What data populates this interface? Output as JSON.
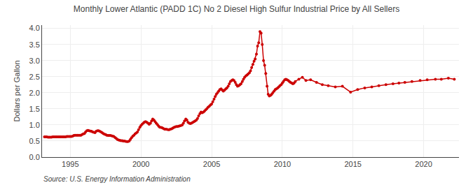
{
  "chart_data": {
    "type": "line",
    "title": "Monthly Lower Atlantic (PADD 1C) No 2 Diesel High Sulfur Industrial Price by All Sellers",
    "y_label": "Dollars per Gallon",
    "annotations": [
      "Source: U.S. Energy Information Administration"
    ],
    "color": "#CC0000",
    "marker": "circle",
    "line_style": "solid",
    "grid": true,
    "xlim": [
      1993.0,
      2022.5
    ],
    "xticks": [
      1995,
      2000,
      2005,
      2010,
      2015,
      2020
    ],
    "ylim": [
      0.0,
      4.1
    ],
    "yticks": [
      {
        "value": 0,
        "label": "0.0"
      },
      0.5,
      {
        "value": 1,
        "label": "1.0"
      },
      1.5,
      {
        "value": 2,
        "label": "2.0"
      },
      2.5,
      {
        "value": 3,
        "label": "3.0"
      },
      3.5,
      {
        "value": 4,
        "label": "4.0"
      }
    ],
    "x": [
      1993.17,
      1993.25,
      1993.33,
      1993.42,
      1993.5,
      1993.58,
      1993.67,
      1993.75,
      1993.83,
      1993.92,
      1994.0,
      1994.08,
      1994.17,
      1994.25,
      1994.33,
      1994.42,
      1994.5,
      1994.58,
      1994.67,
      1994.75,
      1994.83,
      1994.92,
      1995.0,
      1995.08,
      1995.17,
      1995.25,
      1995.33,
      1995.42,
      1995.5,
      1995.58,
      1995.67,
      1995.75,
      1995.83,
      1995.92,
      1996.0,
      1996.08,
      1996.17,
      1996.25,
      1996.33,
      1996.42,
      1996.5,
      1996.58,
      1996.67,
      1996.75,
      1996.83,
      1996.92,
      1997.0,
      1997.08,
      1997.17,
      1997.25,
      1997.33,
      1997.42,
      1997.5,
      1997.58,
      1997.67,
      1997.75,
      1997.83,
      1997.92,
      1998.0,
      1998.08,
      1998.17,
      1998.25,
      1998.33,
      1998.42,
      1998.5,
      1998.58,
      1998.67,
      1998.75,
      1998.83,
      1998.92,
      1999.0,
      1999.08,
      1999.17,
      1999.25,
      1999.33,
      1999.42,
      1999.5,
      1999.58,
      1999.67,
      1999.75,
      1999.83,
      1999.92,
      2000.0,
      2000.08,
      2000.17,
      2000.25,
      2000.33,
      2000.42,
      2000.5,
      2000.58,
      2000.67,
      2000.75,
      2000.83,
      2000.92,
      2001.0,
      2001.08,
      2001.17,
      2001.25,
      2001.33,
      2001.42,
      2001.5,
      2001.58,
      2001.67,
      2001.75,
      2001.83,
      2001.92,
      2002.0,
      2002.08,
      2002.17,
      2002.25,
      2002.33,
      2002.42,
      2002.5,
      2002.58,
      2002.67,
      2002.75,
      2002.83,
      2002.92,
      2003.0,
      2003.08,
      2003.17,
      2003.25,
      2003.33,
      2003.42,
      2003.5,
      2003.58,
      2003.67,
      2003.75,
      2003.83,
      2003.92,
      2004.0,
      2004.08,
      2004.17,
      2004.25,
      2004.33,
      2004.42,
      2004.5,
      2004.58,
      2004.67,
      2004.75,
      2004.83,
      2004.92,
      2005.0,
      2005.08,
      2005.17,
      2005.25,
      2005.33,
      2005.42,
      2005.5,
      2005.58,
      2005.67,
      2005.75,
      2005.83,
      2005.92,
      2006.0,
      2006.08,
      2006.17,
      2006.25,
      2006.33,
      2006.42,
      2006.5,
      2006.58,
      2006.67,
      2006.75,
      2006.83,
      2006.92,
      2007.0,
      2007.08,
      2007.17,
      2007.25,
      2007.33,
      2007.42,
      2007.5,
      2007.58,
      2007.67,
      2007.75,
      2007.83,
      2007.92,
      2008.0,
      2008.08,
      2008.17,
      2008.25,
      2008.33,
      2008.42,
      2008.5,
      2008.58,
      2008.67,
      2008.75,
      2008.83,
      2008.92,
      2009.0,
      2009.08,
      2009.17,
      2009.25,
      2009.33,
      2009.42,
      2009.5,
      2009.58,
      2009.67,
      2009.75,
      2009.83,
      2009.92,
      2010.0,
      2010.08,
      2010.17,
      2010.25,
      2010.33,
      2010.42,
      2010.5,
      2010.58,
      2010.67,
      2010.75,
      2010.83,
      2010.92,
      2011.17,
      2011.42,
      2011.67,
      2012.0,
      2012.42,
      2012.83,
      2013.25,
      2013.75,
      2014.25,
      2014.83,
      2015.33,
      2015.83,
      2016.33,
      2016.83,
      2017.33,
      2017.83,
      2018.25,
      2018.67,
      2019.17,
      2019.75,
      2020.25,
      2020.83,
      2021.25,
      2021.75,
      2022.17
    ],
    "values": [
      0.63,
      0.63,
      0.63,
      0.62,
      0.62,
      0.62,
      0.62,
      0.63,
      0.63,
      0.63,
      0.63,
      0.63,
      0.63,
      0.63,
      0.63,
      0.63,
      0.63,
      0.63,
      0.63,
      0.64,
      0.64,
      0.64,
      0.64,
      0.64,
      0.65,
      0.67,
      0.68,
      0.68,
      0.68,
      0.68,
      0.68,
      0.68,
      0.7,
      0.72,
      0.73,
      0.78,
      0.82,
      0.83,
      0.82,
      0.81,
      0.8,
      0.78,
      0.77,
      0.76,
      0.8,
      0.82,
      0.82,
      0.8,
      0.78,
      0.76,
      0.73,
      0.71,
      0.7,
      0.68,
      0.67,
      0.67,
      0.67,
      0.66,
      0.65,
      0.64,
      0.61,
      0.58,
      0.55,
      0.53,
      0.52,
      0.51,
      0.51,
      0.5,
      0.5,
      0.49,
      0.48,
      0.48,
      0.5,
      0.55,
      0.6,
      0.65,
      0.68,
      0.72,
      0.75,
      0.78,
      0.85,
      0.93,
      0.98,
      1.02,
      1.06,
      1.09,
      1.1,
      1.08,
      1.05,
      1.02,
      1.05,
      1.12,
      1.18,
      1.15,
      1.1,
      1.05,
      1.01,
      0.96,
      0.93,
      0.92,
      0.91,
      0.89,
      0.87,
      0.87,
      0.86,
      0.85,
      0.85,
      0.87,
      0.88,
      0.9,
      0.92,
      0.94,
      0.95,
      0.95,
      0.96,
      0.97,
      0.98,
      1.0,
      1.05,
      1.12,
      1.18,
      1.15,
      1.08,
      1.05,
      1.04,
      1.06,
      1.08,
      1.1,
      1.12,
      1.15,
      1.2,
      1.28,
      1.35,
      1.4,
      1.38,
      1.4,
      1.43,
      1.47,
      1.51,
      1.55,
      1.58,
      1.62,
      1.65,
      1.72,
      1.8,
      1.88,
      1.95,
      2.0,
      2.05,
      2.1,
      2.12,
      2.08,
      2.05,
      2.08,
      2.12,
      2.15,
      2.2,
      2.28,
      2.35,
      2.38,
      2.4,
      2.38,
      2.32,
      2.25,
      2.2,
      2.22,
      2.25,
      2.28,
      2.35,
      2.42,
      2.48,
      2.52,
      2.55,
      2.58,
      2.62,
      2.68,
      2.78,
      2.88,
      2.98,
      3.05,
      3.2,
      3.45,
      3.55,
      3.9,
      3.85,
      3.5,
      3.0,
      2.85,
      2.6,
      2.2,
      1.95,
      1.9,
      1.92,
      1.95,
      2.0,
      2.05,
      2.1,
      2.12,
      2.15,
      2.18,
      2.22,
      2.25,
      2.3,
      2.35,
      2.4,
      2.42,
      2.4,
      2.38,
      2.35,
      2.32,
      2.3,
      2.28,
      2.3,
      2.35,
      2.42,
      2.48,
      2.38,
      2.4,
      2.32,
      2.25,
      2.22,
      2.18,
      2.2,
      2.02,
      2.1,
      2.15,
      2.18,
      2.22,
      2.25,
      2.28,
      2.3,
      2.32,
      2.35,
      2.38,
      2.4,
      2.42,
      2.42,
      2.45,
      2.42
    ]
  }
}
